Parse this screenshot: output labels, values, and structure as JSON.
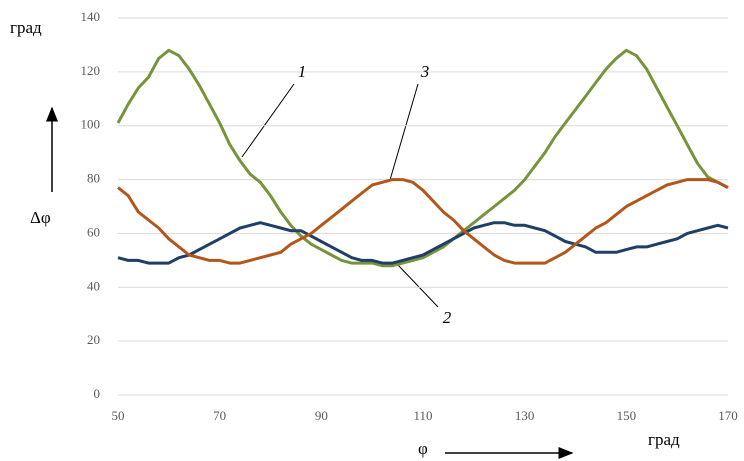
{
  "chart_data": {
    "type": "line",
    "y_label": "град",
    "y_symbol": "Δφ",
    "x_label": "φ",
    "x_unit": "град",
    "x": [
      50,
      52,
      54,
      56,
      58,
      60,
      62,
      64,
      66,
      68,
      70,
      72,
      74,
      76,
      78,
      80,
      82,
      84,
      86,
      88,
      90,
      92,
      94,
      96,
      98,
      100,
      102,
      104,
      106,
      108,
      110,
      112,
      114,
      116,
      118,
      120,
      122,
      124,
      126,
      128,
      130,
      132,
      134,
      136,
      138,
      140,
      142,
      144,
      146,
      148,
      150,
      152,
      154,
      156,
      158,
      160,
      162,
      164,
      166,
      168,
      170
    ],
    "xlim": [
      50,
      170
    ],
    "xticks": [
      50,
      70,
      90,
      110,
      130,
      150,
      170
    ],
    "ylim": [
      0,
      140
    ],
    "yticks": [
      0,
      20,
      40,
      60,
      80,
      100,
      120,
      140
    ],
    "grid": true,
    "series": [
      {
        "name": "1",
        "color": "#77933c",
        "values": [
          101,
          108,
          114,
          118,
          125,
          128,
          126,
          121,
          115,
          108,
          101,
          93,
          87,
          82,
          79,
          74,
          68,
          63,
          59,
          56,
          54,
          52,
          50,
          49,
          49,
          49,
          48,
          48,
          49,
          50,
          51,
          53,
          55,
          58,
          61,
          64,
          67,
          70,
          73,
          76,
          80,
          85,
          90,
          96,
          101,
          106,
          111,
          116,
          121,
          125,
          128,
          126,
          121,
          114,
          107,
          100,
          93,
          86,
          81,
          79,
          77
        ]
      },
      {
        "name": "2",
        "color": "#1f3f66",
        "values": [
          51,
          50,
          50,
          49,
          49,
          49,
          51,
          52,
          54,
          56,
          58,
          60,
          62,
          63,
          64,
          63,
          62,
          61,
          61,
          59,
          57,
          55,
          53,
          51,
          50,
          50,
          49,
          49,
          50,
          51,
          52,
          54,
          56,
          58,
          60,
          62,
          63,
          64,
          64,
          63,
          63,
          62,
          61,
          59,
          57,
          56,
          55,
          53,
          53,
          53,
          54,
          55,
          55,
          56,
          57,
          58,
          60,
          61,
          62,
          63,
          62
        ]
      },
      {
        "name": "3",
        "color": "#b4561b",
        "values": [
          77,
          74,
          68,
          65,
          62,
          58,
          55,
          52,
          51,
          50,
          50,
          49,
          49,
          50,
          51,
          52,
          53,
          56,
          58,
          60,
          63,
          66,
          69,
          72,
          75,
          78,
          79,
          80,
          80,
          79,
          76,
          72,
          68,
          65,
          61,
          58,
          55,
          52,
          50,
          49,
          49,
          49,
          49,
          51,
          53,
          56,
          59,
          62,
          64,
          67,
          70,
          72,
          74,
          76,
          78,
          79,
          80,
          80,
          80,
          79,
          77
        ]
      }
    ]
  }
}
